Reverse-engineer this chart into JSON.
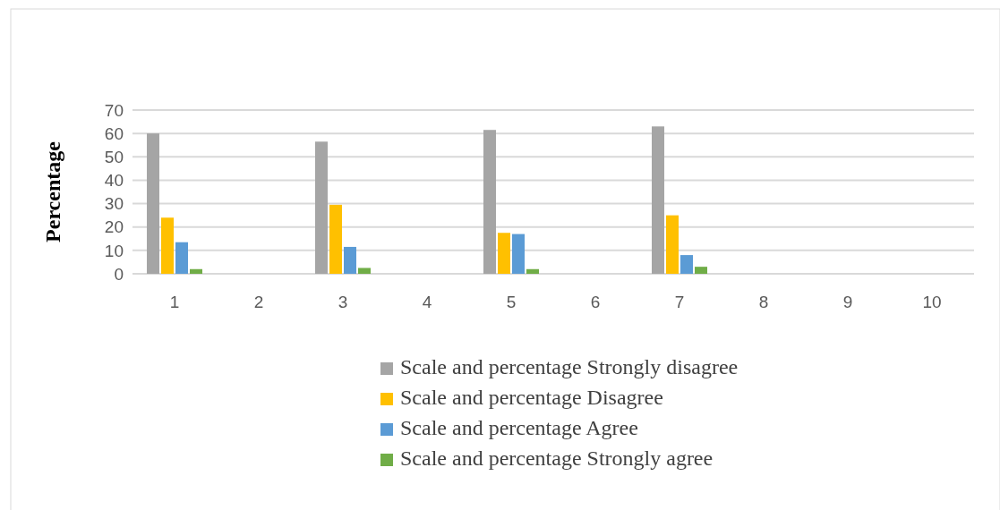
{
  "chart_data": {
    "type": "bar",
    "ylabel": "Percentage",
    "categories": [
      "1",
      "2",
      "3",
      "4",
      "5",
      "6",
      "7",
      "8",
      "9",
      "10"
    ],
    "series": [
      {
        "name": "Scale and percentage Strongly disagree",
        "color": "#a5a5a5",
        "values": [
          60,
          null,
          56.5,
          null,
          61.5,
          null,
          63,
          null,
          null,
          null
        ]
      },
      {
        "name": "Scale and percentage Disagree",
        "color": "#ffc000",
        "values": [
          24,
          null,
          29.5,
          null,
          17.5,
          null,
          25,
          null,
          null,
          null
        ]
      },
      {
        "name": "Scale and percentage Agree",
        "color": "#5b9bd5",
        "values": [
          13.5,
          null,
          11.5,
          null,
          17,
          null,
          8,
          null,
          null,
          null
        ]
      },
      {
        "name": "Scale and percentage Strongly agree",
        "color": "#70ad47",
        "values": [
          2,
          null,
          2.5,
          null,
          2,
          null,
          3,
          null,
          null,
          null
        ]
      }
    ],
    "ylim": [
      0,
      70
    ],
    "yticks": [
      0,
      10,
      20,
      30,
      40,
      50,
      60,
      70
    ],
    "grid": "y",
    "legend": "bottom"
  }
}
